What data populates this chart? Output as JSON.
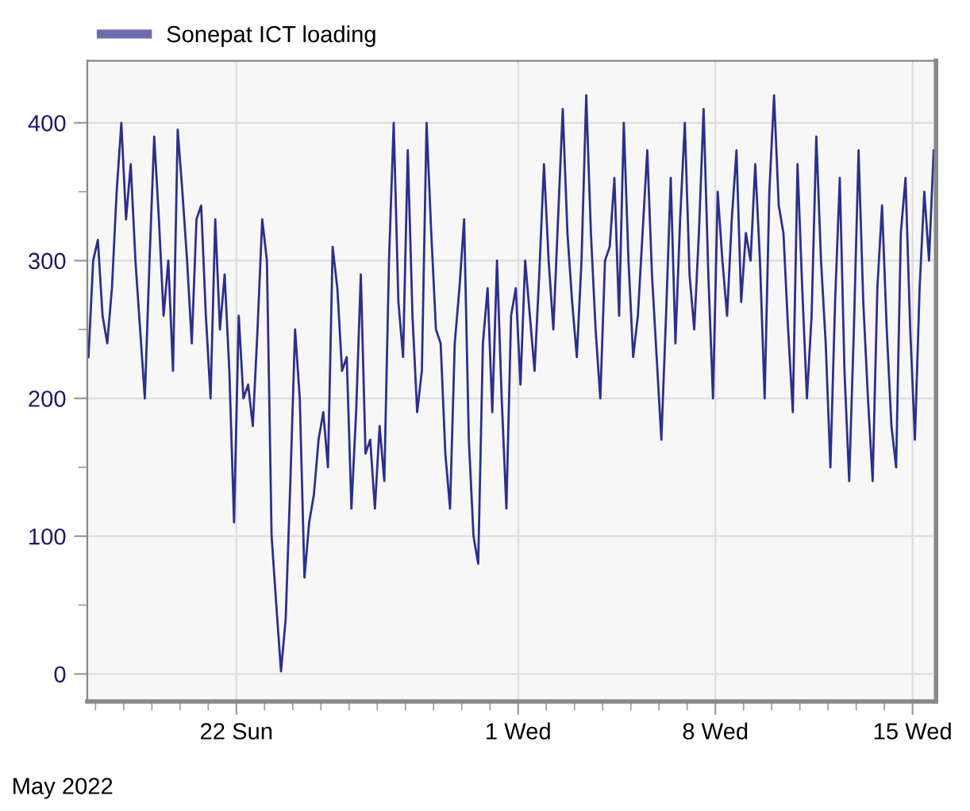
{
  "chart_data": {
    "type": "line",
    "legend": "top left",
    "grid": true,
    "marker": "none",
    "line_style": "solid",
    "annotations": [
      "May 2022"
    ],
    "xlim": [
      "2022-05-16T17:00",
      "2022-06-15T20:00"
    ],
    "xticks": [
      {
        "value": "2022-05-17",
        "label": null
      },
      {
        "value": "2022-05-18",
        "label": null
      },
      {
        "value": "2022-05-19",
        "label": null
      },
      {
        "value": "2022-05-20",
        "label": null
      },
      {
        "value": "2022-05-21",
        "label": null
      },
      {
        "value": "2022-05-22",
        "label": "22 Sun"
      },
      {
        "value": "2022-05-23",
        "label": null
      },
      {
        "value": "2022-05-24",
        "label": null
      },
      {
        "value": "2022-05-25",
        "label": null
      },
      {
        "value": "2022-05-26",
        "label": null
      },
      {
        "value": "2022-05-27",
        "label": null
      },
      {
        "value": "2022-05-28",
        "label": null
      },
      {
        "value": "2022-05-29",
        "label": null
      },
      {
        "value": "2022-05-30",
        "label": null
      },
      {
        "value": "2022-05-31",
        "label": null
      },
      {
        "value": "2022-06-01",
        "label": "1 Wed"
      },
      {
        "value": "2022-06-02",
        "label": null
      },
      {
        "value": "2022-06-03",
        "label": null
      },
      {
        "value": "2022-06-04",
        "label": null
      },
      {
        "value": "2022-06-05",
        "label": null
      },
      {
        "value": "2022-06-06",
        "label": null
      },
      {
        "value": "2022-06-07",
        "label": null
      },
      {
        "value": "2022-06-08",
        "label": "8 Wed"
      },
      {
        "value": "2022-06-09",
        "label": null
      },
      {
        "value": "2022-06-10",
        "label": null
      },
      {
        "value": "2022-06-11",
        "label": null
      },
      {
        "value": "2022-06-12",
        "label": null
      },
      {
        "value": "2022-06-13",
        "label": null
      },
      {
        "value": "2022-06-14",
        "label": null
      },
      {
        "value": "2022-06-15",
        "label": "15 Wed"
      }
    ],
    "ylim": [
      -20,
      445
    ],
    "yticks": [
      0,
      {
        "value": 50,
        "label": null
      },
      100,
      {
        "value": 150,
        "label": null
      },
      200,
      {
        "value": 250,
        "label": null
      },
      300,
      {
        "value": 350,
        "label": null
      },
      400
    ],
    "series": [
      {
        "name": "Sonepat ICT loading",
        "color": "#2e2e8c",
        "x": [
          "2022-05-16T18:00",
          "2022-05-16T22:00",
          "2022-05-17T02:00",
          "2022-05-17T06:00",
          "2022-05-17T10:00",
          "2022-05-17T14:00",
          "2022-05-17T18:00",
          "2022-05-17T22:00",
          "2022-05-18T02:00",
          "2022-05-18T06:00",
          "2022-05-18T10:00",
          "2022-05-18T14:00",
          "2022-05-18T18:00",
          "2022-05-18T22:00",
          "2022-05-19T02:00",
          "2022-05-19T06:00",
          "2022-05-19T10:00",
          "2022-05-19T14:00",
          "2022-05-19T18:00",
          "2022-05-19T22:00",
          "2022-05-20T02:00",
          "2022-05-20T06:00",
          "2022-05-20T10:00",
          "2022-05-20T14:00",
          "2022-05-20T18:00",
          "2022-05-20T22:00",
          "2022-05-21T02:00",
          "2022-05-21T06:00",
          "2022-05-21T10:00",
          "2022-05-21T14:00",
          "2022-05-21T18:00",
          "2022-05-21T22:00",
          "2022-05-22T02:00",
          "2022-05-22T06:00",
          "2022-05-22T10:00",
          "2022-05-22T14:00",
          "2022-05-22T18:00",
          "2022-05-22T22:00",
          "2022-05-23T02:00",
          "2022-05-23T06:00",
          "2022-05-23T10:00",
          "2022-05-23T14:00",
          "2022-05-23T18:00",
          "2022-05-23T22:00",
          "2022-05-24T02:00",
          "2022-05-24T06:00",
          "2022-05-24T10:00",
          "2022-05-24T14:00",
          "2022-05-24T18:00",
          "2022-05-24T22:00",
          "2022-05-25T02:00",
          "2022-05-25T06:00",
          "2022-05-25T10:00",
          "2022-05-25T14:00",
          "2022-05-25T18:00",
          "2022-05-25T22:00",
          "2022-05-26T02:00",
          "2022-05-26T06:00",
          "2022-05-26T10:00",
          "2022-05-26T14:00",
          "2022-05-26T18:00",
          "2022-05-26T22:00",
          "2022-05-27T02:00",
          "2022-05-27T06:00",
          "2022-05-27T10:00",
          "2022-05-27T14:00",
          "2022-05-27T18:00",
          "2022-05-27T22:00",
          "2022-05-28T02:00",
          "2022-05-28T06:00",
          "2022-05-28T10:00",
          "2022-05-28T14:00",
          "2022-05-28T18:00",
          "2022-05-28T22:00",
          "2022-05-29T02:00",
          "2022-05-29T06:00",
          "2022-05-29T10:00",
          "2022-05-29T14:00",
          "2022-05-29T18:00",
          "2022-05-29T22:00",
          "2022-05-30T02:00",
          "2022-05-30T06:00",
          "2022-05-30T10:00",
          "2022-05-30T14:00",
          "2022-05-30T18:00",
          "2022-05-30T22:00",
          "2022-05-31T02:00",
          "2022-05-31T06:00",
          "2022-05-31T10:00",
          "2022-05-31T14:00",
          "2022-05-31T18:00",
          "2022-05-31T22:00",
          "2022-06-01T02:00",
          "2022-06-01T06:00",
          "2022-06-01T10:00",
          "2022-06-01T14:00",
          "2022-06-01T18:00",
          "2022-06-01T22:00",
          "2022-06-02T02:00",
          "2022-06-02T06:00",
          "2022-06-02T10:00",
          "2022-06-02T14:00",
          "2022-06-02T18:00",
          "2022-06-02T22:00",
          "2022-06-03T02:00",
          "2022-06-03T06:00",
          "2022-06-03T10:00",
          "2022-06-03T14:00",
          "2022-06-03T18:00",
          "2022-06-03T22:00",
          "2022-06-04T02:00",
          "2022-06-04T06:00",
          "2022-06-04T10:00",
          "2022-06-04T14:00",
          "2022-06-04T18:00",
          "2022-06-04T22:00",
          "2022-06-05T02:00",
          "2022-06-05T06:00",
          "2022-06-05T10:00",
          "2022-06-05T14:00",
          "2022-06-05T18:00",
          "2022-06-05T22:00",
          "2022-06-06T02:00",
          "2022-06-06T06:00",
          "2022-06-06T10:00",
          "2022-06-06T14:00",
          "2022-06-06T18:00",
          "2022-06-06T22:00",
          "2022-06-07T02:00",
          "2022-06-07T06:00",
          "2022-06-07T10:00",
          "2022-06-07T14:00",
          "2022-06-07T18:00",
          "2022-06-07T22:00",
          "2022-06-08T02:00",
          "2022-06-08T06:00",
          "2022-06-08T10:00",
          "2022-06-08T14:00",
          "2022-06-08T18:00",
          "2022-06-08T22:00",
          "2022-06-09T02:00",
          "2022-06-09T06:00",
          "2022-06-09T10:00",
          "2022-06-09T14:00",
          "2022-06-09T18:00",
          "2022-06-09T22:00",
          "2022-06-10T02:00",
          "2022-06-10T06:00",
          "2022-06-10T10:00",
          "2022-06-10T14:00",
          "2022-06-10T18:00",
          "2022-06-10T22:00",
          "2022-06-11T02:00",
          "2022-06-11T06:00",
          "2022-06-11T10:00",
          "2022-06-11T14:00",
          "2022-06-11T18:00",
          "2022-06-11T22:00",
          "2022-06-12T02:00",
          "2022-06-12T06:00",
          "2022-06-12T10:00",
          "2022-06-12T14:00",
          "2022-06-12T18:00",
          "2022-06-12T22:00",
          "2022-06-13T02:00",
          "2022-06-13T06:00",
          "2022-06-13T10:00",
          "2022-06-13T14:00",
          "2022-06-13T18:00",
          "2022-06-13T22:00",
          "2022-06-14T02:00",
          "2022-06-14T06:00",
          "2022-06-14T10:00",
          "2022-06-14T14:00",
          "2022-06-14T18:00",
          "2022-06-14T22:00",
          "2022-06-15T02:00",
          "2022-06-15T06:00",
          "2022-06-15T10:00",
          "2022-06-15T14:00",
          "2022-06-15T18:00"
        ],
        "values": [
          230,
          300,
          315,
          260,
          240,
          280,
          350,
          400,
          330,
          370,
          300,
          250,
          200,
          300,
          390,
          330,
          260,
          300,
          220,
          395,
          350,
          300,
          240,
          330,
          340,
          260,
          200,
          330,
          250,
          290,
          220,
          110,
          260,
          200,
          210,
          180,
          250,
          330,
          300,
          100,
          50,
          2,
          40,
          140,
          250,
          200,
          70,
          110,
          130,
          170,
          190,
          150,
          310,
          280,
          220,
          230,
          120,
          190,
          290,
          160,
          170,
          120,
          180,
          140,
          300,
          400,
          270,
          230,
          380,
          260,
          190,
          220,
          400,
          320,
          250,
          240,
          160,
          120,
          240,
          280,
          330,
          170,
          100,
          80,
          240,
          280,
          190,
          300,
          200,
          120,
          260,
          280,
          210,
          300,
          260,
          220,
          290,
          370,
          300,
          250,
          330,
          410,
          320,
          270,
          230,
          300,
          420,
          320,
          250,
          200,
          300,
          310,
          360,
          260,
          400,
          300,
          230,
          260,
          320,
          380,
          290,
          230,
          170,
          260,
          360,
          240,
          330,
          400,
          290,
          250,
          320,
          410,
          290,
          200,
          350,
          300,
          260,
          330,
          380,
          270,
          320,
          300,
          370,
          300,
          200,
          350,
          420,
          340,
          320,
          250,
          190,
          370,
          280,
          200,
          260,
          390,
          300,
          240,
          150,
          270,
          360,
          220,
          140,
          250,
          380,
          270,
          200,
          140,
          280,
          340,
          250,
          180,
          150,
          320,
          360,
          250,
          170,
          280,
          350,
          300,
          380
        ]
      }
    ]
  }
}
